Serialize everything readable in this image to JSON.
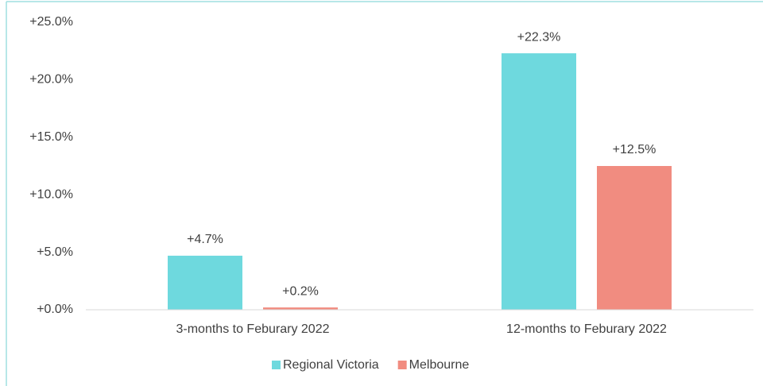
{
  "chart_data": {
    "type": "bar",
    "categories": [
      "3-months to Feburary 2022",
      "12-months to Feburary 2022"
    ],
    "series": [
      {
        "name": "Regional Victoria",
        "color": "#6ed9de",
        "values": [
          4.7,
          22.3
        ],
        "value_labels": [
          "+4.7%",
          "+22.3%"
        ]
      },
      {
        "name": "Melbourne",
        "color": "#f18c80",
        "values": [
          0.2,
          12.5
        ],
        "value_labels": [
          "+0.2%",
          "+12.5%"
        ]
      }
    ],
    "ylim": [
      0,
      25
    ],
    "yticks": [
      {
        "value": 0,
        "label": "+0.0%"
      },
      {
        "value": 5,
        "label": "+5.0%"
      },
      {
        "value": 10,
        "label": "+10.0%"
      },
      {
        "value": 15,
        "label": "+15.0%"
      },
      {
        "value": 20,
        "label": "+20.0%"
      },
      {
        "value": 25,
        "label": "+25.0%"
      }
    ],
    "grid": false,
    "legend": "bottom"
  }
}
